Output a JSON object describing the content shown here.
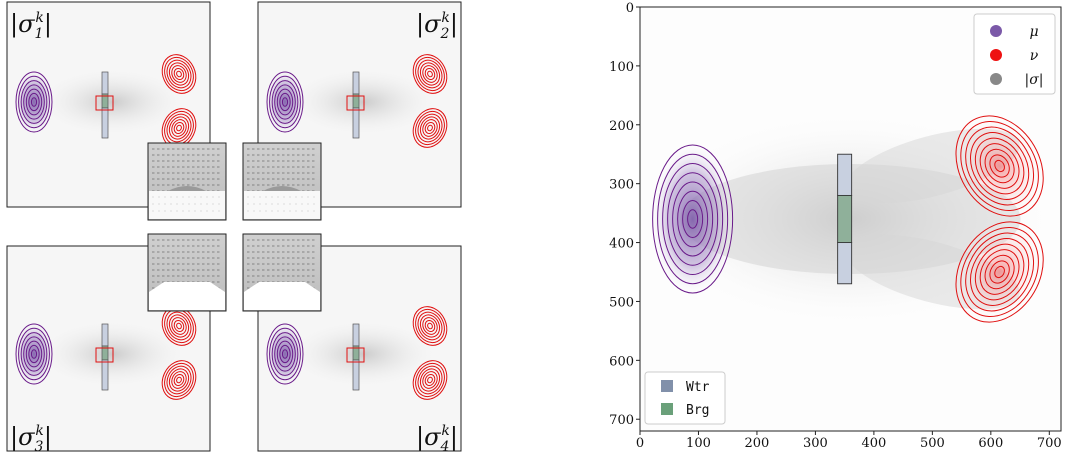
{
  "panels": [
    {
      "id": "sigma1",
      "label": "|σ",
      "sub": "1",
      "sup": "k"
    },
    {
      "id": "sigma2",
      "label": "|σ",
      "sub": "2",
      "sup": "k"
    },
    {
      "id": "sigma3",
      "label": "|σ",
      "sub": "3",
      "sup": "k"
    },
    {
      "id": "sigma4",
      "label": "|σ",
      "sub": "4",
      "sup": "k"
    }
  ],
  "main_plot": {
    "x_ticks": [
      "0",
      "100",
      "200",
      "300",
      "400",
      "500",
      "600",
      "700"
    ],
    "y_ticks": [
      "0",
      "100",
      "200",
      "300",
      "400",
      "500",
      "600",
      "700"
    ],
    "xlim": [
      0,
      720
    ],
    "ylim": [
      720,
      0
    ],
    "legend_top": [
      {
        "label": "μ",
        "color": "#7b59a8"
      },
      {
        "label": "ν",
        "color": "#ee1111"
      },
      {
        "label": "|σ|",
        "color": "#888888"
      }
    ],
    "legend_bottom": [
      {
        "label": "Wtr",
        "color": "#8190aa"
      },
      {
        "label": "Brg",
        "color": "#6aa07a"
      }
    ],
    "mu_center": [
      90,
      360
    ],
    "nu_centers": [
      [
        615,
        270
      ],
      [
        615,
        450
      ]
    ],
    "walls": [
      [
        350,
        250,
        320
      ],
      [
        350,
        400,
        470
      ]
    ],
    "bridge": [
      350,
      320,
      400
    ]
  },
  "colors": {
    "mu": "#6a1b8a",
    "nu": "#e01010",
    "wall": "#c8d0e0",
    "bridge": "#8fb09a"
  }
}
